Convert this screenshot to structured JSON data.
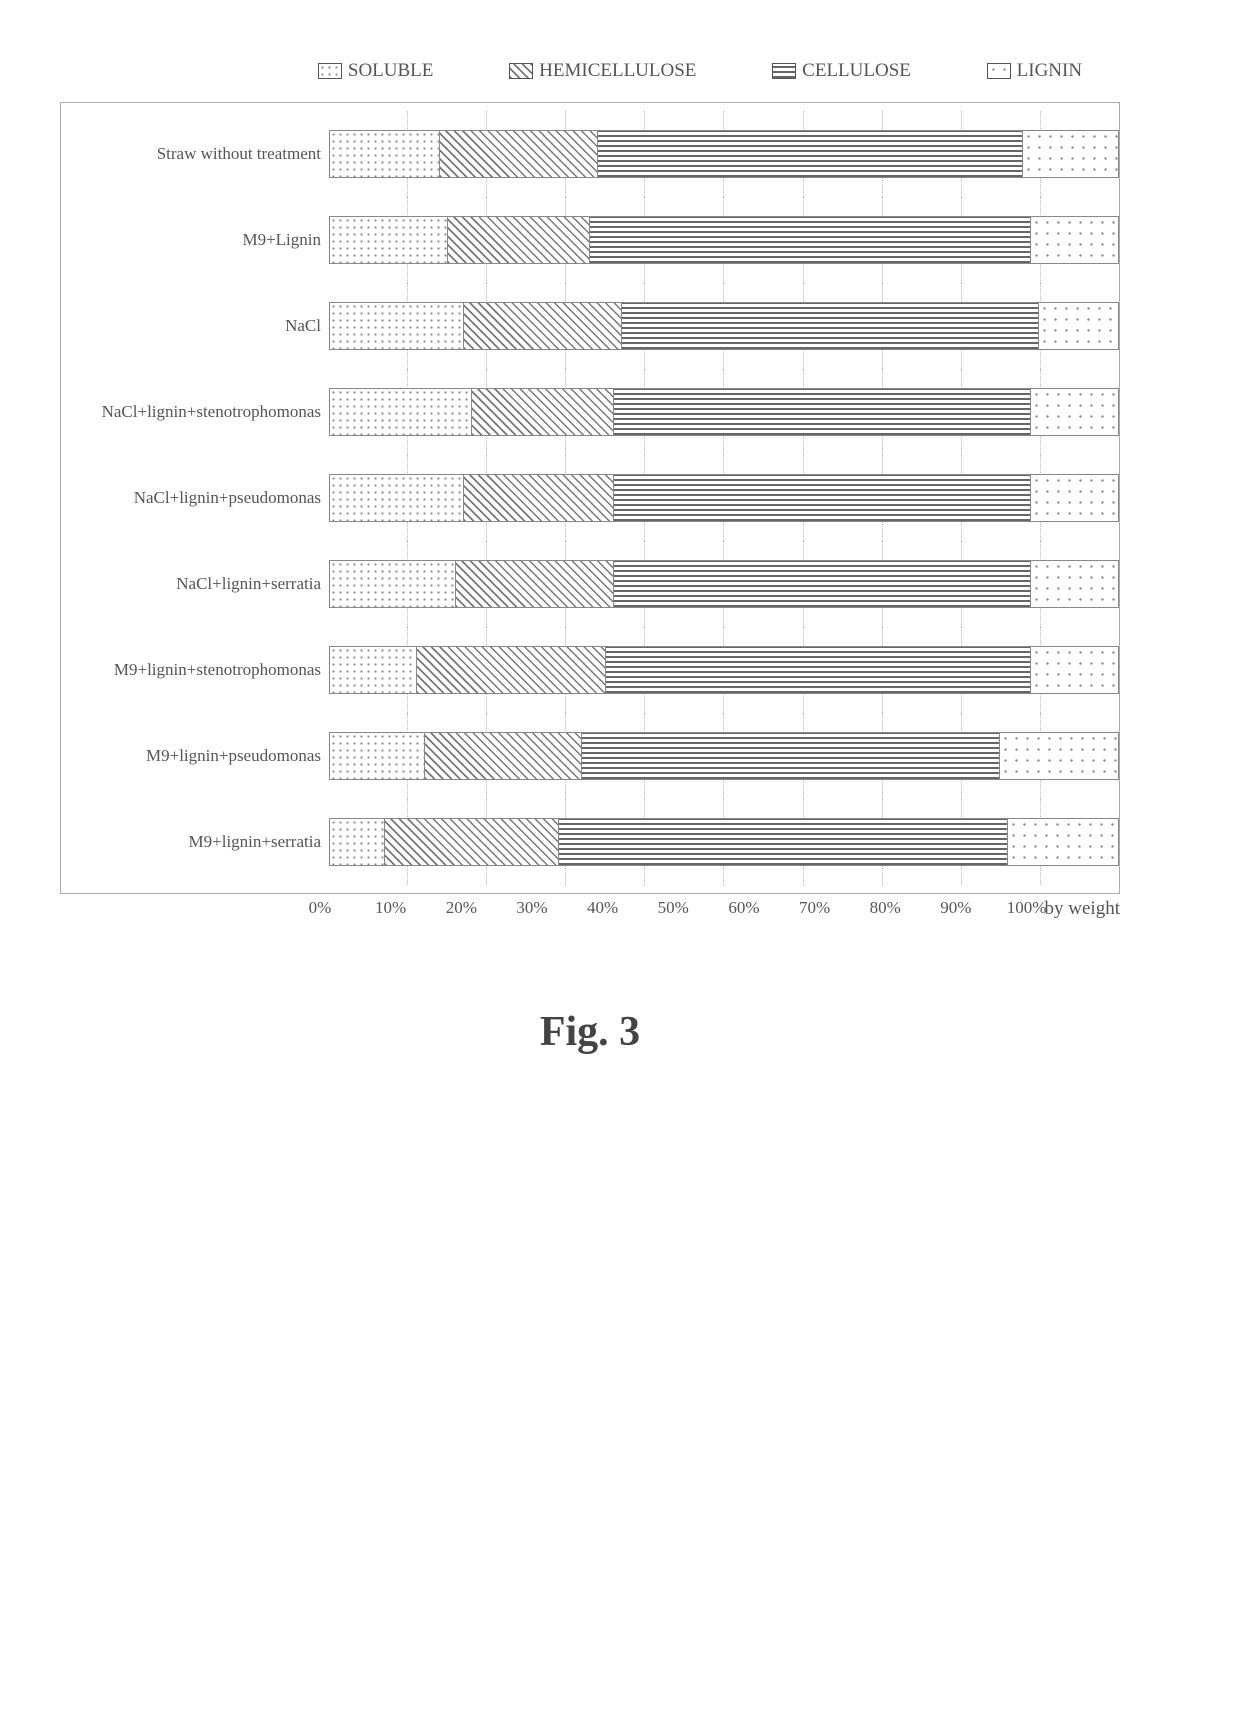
{
  "chart": {
    "type": "stacked-bar-horizontal-100pct",
    "orientation": "horizontal",
    "stack_to": 100,
    "background_color": "#ffffff",
    "grid_color": "#bbbbbb",
    "grid_style": "dotted",
    "bar_border_color": "#888888",
    "label_font_family": "Times New Roman",
    "label_fontsize_pt": 13,
    "legend_fontsize_pt": 14,
    "tick_fontsize_pt": 13,
    "axis_label_text": "by weight",
    "xlim": [
      0,
      100
    ],
    "xtick_step": 10,
    "xticks": [
      "0%",
      "10%",
      "20%",
      "30%",
      "40%",
      "50%",
      "60%",
      "70%",
      "80%",
      "90%",
      "100%"
    ],
    "series": [
      {
        "key": "soluble",
        "label": "SOLUBLE",
        "pattern": "pat-dots"
      },
      {
        "key": "hemicellulose",
        "label": "HEMICELLULOSE",
        "pattern": "pat-diag"
      },
      {
        "key": "cellulose",
        "label": "CELLULOSE",
        "pattern": "pat-hstripe"
      },
      {
        "key": "lignin",
        "label": "LIGNIN",
        "pattern": "pat-sparse"
      }
    ],
    "rows": [
      {
        "label": "Straw without treatment",
        "values": {
          "soluble": 14,
          "hemicellulose": 20,
          "cellulose": 54,
          "lignin": 12
        }
      },
      {
        "label": "M9+Lignin",
        "values": {
          "soluble": 15,
          "hemicellulose": 18,
          "cellulose": 56,
          "lignin": 11
        }
      },
      {
        "label": "NaCl",
        "values": {
          "soluble": 17,
          "hemicellulose": 20,
          "cellulose": 53,
          "lignin": 10
        }
      },
      {
        "label": "NaCl+lignin+stenotrophomonas",
        "values": {
          "soluble": 18,
          "hemicellulose": 18,
          "cellulose": 53,
          "lignin": 11
        }
      },
      {
        "label": "NaCl+lignin+pseudomonas",
        "values": {
          "soluble": 17,
          "hemicellulose": 19,
          "cellulose": 53,
          "lignin": 11
        }
      },
      {
        "label": "NaCl+lignin+serratia",
        "values": {
          "soluble": 16,
          "hemicellulose": 20,
          "cellulose": 53,
          "lignin": 11
        }
      },
      {
        "label": "M9+lignin+stenotrophomonas",
        "values": {
          "soluble": 11,
          "hemicellulose": 24,
          "cellulose": 54,
          "lignin": 11
        }
      },
      {
        "label": "M9+lignin+pseudomonas",
        "values": {
          "soluble": 12,
          "hemicellulose": 20,
          "cellulose": 53,
          "lignin": 15
        }
      },
      {
        "label": "M9+lignin+serratia",
        "values": {
          "soluble": 7,
          "hemicellulose": 22,
          "cellulose": 57,
          "lignin": 14
        }
      }
    ]
  },
  "caption": "Fig. 3"
}
